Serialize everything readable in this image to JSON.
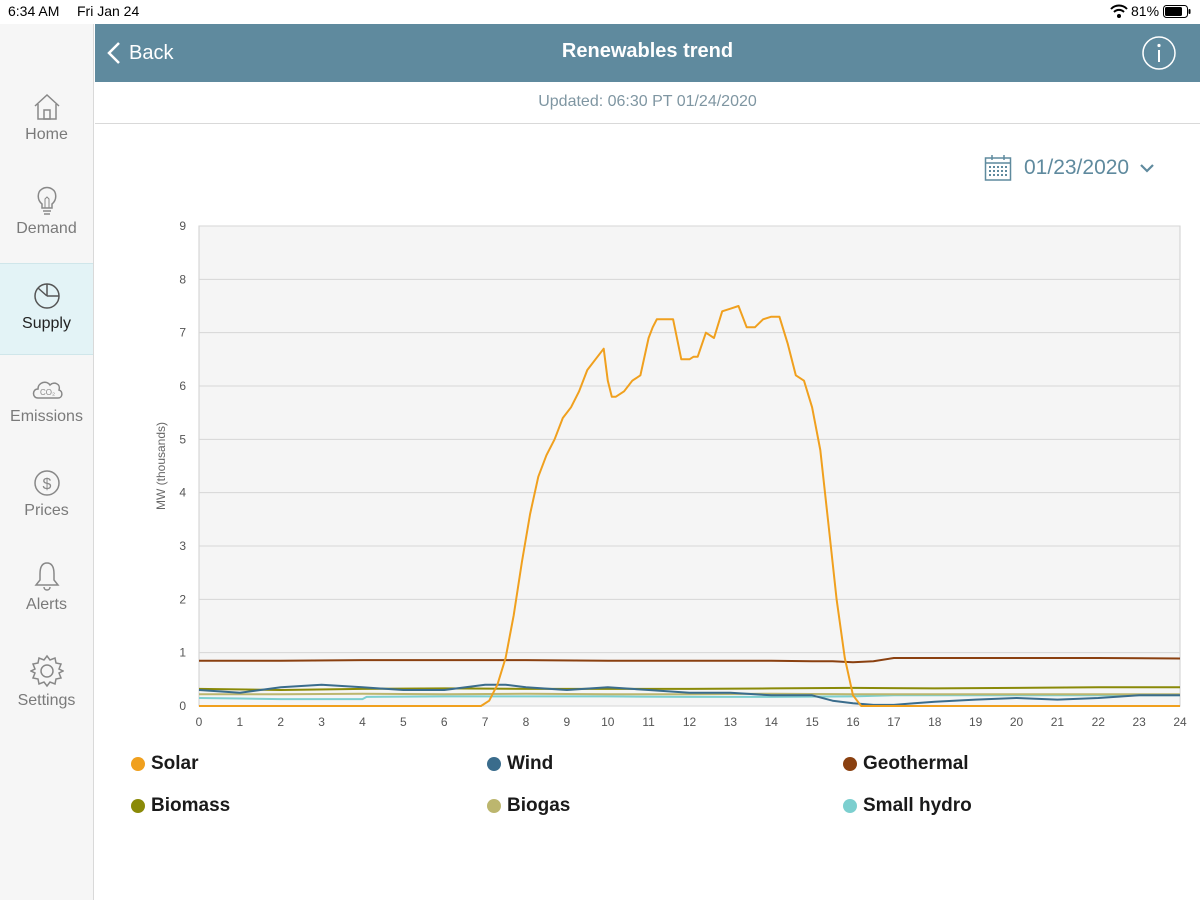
{
  "status_bar": {
    "time": "6:34 AM",
    "date": "Fri Jan 24",
    "battery": "81%",
    "battery_level": 0.81
  },
  "sidebar": {
    "items": [
      {
        "label": "Home",
        "icon": "home-icon",
        "active": false
      },
      {
        "label": "Demand",
        "icon": "lightbulb-icon",
        "active": false
      },
      {
        "label": "Supply",
        "icon": "pie-chart-icon",
        "active": true
      },
      {
        "label": "Emissions",
        "icon": "co2-cloud-icon",
        "active": false
      },
      {
        "label": "Prices",
        "icon": "dollar-icon",
        "active": false
      },
      {
        "label": "Alerts",
        "icon": "bell-icon",
        "active": false
      },
      {
        "label": "Settings",
        "icon": "gear-icon",
        "active": false
      }
    ]
  },
  "header": {
    "back_label": "Back",
    "title": "Renewables trend",
    "info_icon": "info-icon"
  },
  "updated": "Updated: 06:30 PT 01/24/2020",
  "date_picker": {
    "value": "01/23/2020",
    "icon": "calendar-icon"
  },
  "colors": {
    "header": "#5f8a9e",
    "solar": "#f0a01e",
    "wind": "#3a6c8c",
    "geothermal": "#8a4010",
    "biomass": "#8a8a08",
    "biogas": "#bcb66e",
    "small_hydro": "#7ccfcf"
  },
  "chart_data": {
    "type": "line",
    "ylabel": "MW (thousands)",
    "xlim": [
      0,
      24
    ],
    "ylim": [
      0,
      9
    ],
    "x_ticks": [
      "0",
      "1",
      "2",
      "3",
      "4",
      "5",
      "6",
      "7",
      "8",
      "9",
      "10",
      "11",
      "12",
      "13",
      "14",
      "15",
      "16",
      "17",
      "18",
      "19",
      "20",
      "21",
      "22",
      "23",
      "24"
    ],
    "y_ticks": [
      "0",
      "1",
      "2",
      "3",
      "4",
      "5",
      "6",
      "7",
      "8",
      "9"
    ],
    "grid": true,
    "legend_position": "bottom",
    "series": [
      {
        "name": "Solar",
        "color": "#f0a01e",
        "x": [
          0,
          6.9,
          7.1,
          7.3,
          7.5,
          7.7,
          7.9,
          8.1,
          8.3,
          8.5,
          8.7,
          8.9,
          9.1,
          9.3,
          9.5,
          9.7,
          9.9,
          10.0,
          10.1,
          10.2,
          10.4,
          10.6,
          10.8,
          11.0,
          11.1,
          11.2,
          11.4,
          11.6,
          11.8,
          12.0,
          12.1,
          12.2,
          12.4,
          12.6,
          12.8,
          13.0,
          13.2,
          13.4,
          13.6,
          13.8,
          14.0,
          14.2,
          14.4,
          14.6,
          14.8,
          15.0,
          15.2,
          15.4,
          15.6,
          15.8,
          16.0,
          16.2,
          16.4,
          16.6,
          16.8,
          17.0,
          24
        ],
        "y": [
          0,
          0,
          0.1,
          0.4,
          0.9,
          1.7,
          2.7,
          3.6,
          4.3,
          4.7,
          5.0,
          5.4,
          5.6,
          5.9,
          6.3,
          6.5,
          6.7,
          6.1,
          5.8,
          5.8,
          5.9,
          6.1,
          6.2,
          6.9,
          7.1,
          7.25,
          7.25,
          7.25,
          6.5,
          6.5,
          6.55,
          6.55,
          7.0,
          6.9,
          7.4,
          7.45,
          7.5,
          7.1,
          7.1,
          7.25,
          7.3,
          7.3,
          6.8,
          6.2,
          6.1,
          5.6,
          4.8,
          3.4,
          2.0,
          0.9,
          0.2,
          0,
          0,
          0,
          0,
          0,
          0
        ]
      },
      {
        "name": "Wind",
        "color": "#3a6c8c",
        "x": [
          0,
          1,
          2,
          3,
          4,
          5,
          6,
          7,
          7.5,
          8,
          9,
          10,
          11,
          12,
          13,
          14,
          15,
          15.5,
          16,
          16.5,
          17,
          17.5,
          18,
          19,
          20,
          21,
          22,
          23,
          24
        ],
        "y": [
          0.3,
          0.25,
          0.35,
          0.4,
          0.35,
          0.3,
          0.3,
          0.4,
          0.4,
          0.35,
          0.3,
          0.35,
          0.3,
          0.25,
          0.25,
          0.2,
          0.2,
          0.1,
          0.05,
          0.02,
          0.02,
          0.05,
          0.08,
          0.12,
          0.15,
          0.12,
          0.15,
          0.2,
          0.2
        ]
      },
      {
        "name": "Geothermal",
        "color": "#8a4010",
        "x": [
          0,
          2,
          4,
          6,
          8,
          10,
          12,
          14,
          15,
          15.5,
          16,
          16.5,
          17,
          18,
          20,
          22,
          24
        ],
        "y": [
          0.85,
          0.85,
          0.86,
          0.86,
          0.86,
          0.85,
          0.85,
          0.85,
          0.84,
          0.84,
          0.82,
          0.84,
          0.9,
          0.9,
          0.9,
          0.9,
          0.89
        ]
      },
      {
        "name": "Biomass",
        "color": "#8a8a08",
        "x": [
          0,
          2,
          4,
          6,
          8,
          10,
          12,
          14,
          16,
          18,
          20,
          22,
          24
        ],
        "y": [
          0.32,
          0.3,
          0.32,
          0.33,
          0.32,
          0.32,
          0.32,
          0.33,
          0.34,
          0.33,
          0.34,
          0.35,
          0.35
        ]
      },
      {
        "name": "Biogas",
        "color": "#bcb66e",
        "x": [
          0,
          2,
          4,
          6,
          8,
          10,
          12,
          14,
          16,
          18,
          20,
          22,
          24
        ],
        "y": [
          0.22,
          0.22,
          0.23,
          0.22,
          0.23,
          0.22,
          0.22,
          0.23,
          0.22,
          0.22,
          0.22,
          0.22,
          0.22
        ]
      },
      {
        "name": "Small hydro",
        "color": "#7ccfcf",
        "x": [
          0,
          1,
          2,
          3,
          4,
          4.1,
          6,
          8,
          10,
          12,
          14,
          16,
          17,
          18,
          20,
          22,
          24
        ],
        "y": [
          0.15,
          0.14,
          0.13,
          0.13,
          0.13,
          0.17,
          0.18,
          0.18,
          0.18,
          0.17,
          0.17,
          0.18,
          0.2,
          0.2,
          0.2,
          0.2,
          0.2
        ]
      }
    ]
  }
}
